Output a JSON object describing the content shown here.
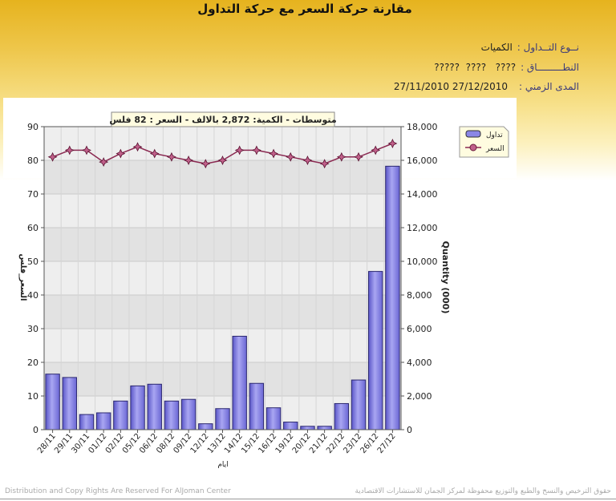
{
  "header": {
    "title": "مقارنة حركة السعر مع حركة التداول"
  },
  "info": {
    "trade_type_label": "نــوع التــداول :",
    "trade_type_value": "الكميات",
    "scope_label": "النطـــــــــاق :",
    "scope_value": "????   ????  ?????",
    "period_label": "المدى الزمني :",
    "period_value": "27/12/2010 27/11/2010"
  },
  "chart_data": {
    "type": "bar",
    "banner": "متوسطات - الكمية: 2,872 بالالف   -  السعر : 82 فلس",
    "xlabel": "ايام",
    "ylabel_left": "السعر_فلس",
    "ylabel_right": "Quantity (000)",
    "ylim_left": [
      0,
      90
    ],
    "ylim_right": [
      0,
      18000
    ],
    "yticks_left": [
      "0",
      "10",
      "20",
      "30",
      "40",
      "50",
      "60",
      "70",
      "80",
      "90"
    ],
    "yticks_right": [
      "0",
      "2,000",
      "4,000",
      "6,000",
      "8,000",
      "10,000",
      "12,000",
      "14,000",
      "16,000",
      "18,000"
    ],
    "categories": [
      "28/11",
      "29/11",
      "30/11",
      "01/12",
      "02/12",
      "05/12",
      "06/12",
      "08/12",
      "09/12",
      "12/12",
      "13/12",
      "14/12",
      "15/12",
      "16/12",
      "19/12",
      "20/12",
      "21/12",
      "22/12",
      "23/12",
      "26/12",
      "27/12"
    ],
    "series": [
      {
        "name": "تداول",
        "type": "bar",
        "axis": "right",
        "color": "#8a86e6",
        "values": [
          3300,
          3100,
          900,
          1000,
          1700,
          2600,
          2700,
          1700,
          1800,
          350,
          1250,
          5550,
          2750,
          1300,
          450,
          200,
          200,
          1550,
          2950,
          9400,
          15650
        ]
      },
      {
        "name": "السعر",
        "type": "line",
        "axis": "left",
        "color": "#8b2a52",
        "values": [
          81,
          83,
          83,
          79.5,
          82,
          84,
          82,
          81,
          80,
          79,
          80,
          83,
          83,
          82,
          81,
          80,
          79,
          81,
          81,
          83,
          85
        ]
      }
    ],
    "legend_position": "top-right",
    "grid": true
  },
  "footer": {
    "left": "Distribution and Copy Rights Are Reserved For AlJoman Center",
    "right": "حقوق الترخيص والنسخ والطبع والتوزيع محفوظة لمركز الجمان للاستشارات الاقتصادية"
  }
}
